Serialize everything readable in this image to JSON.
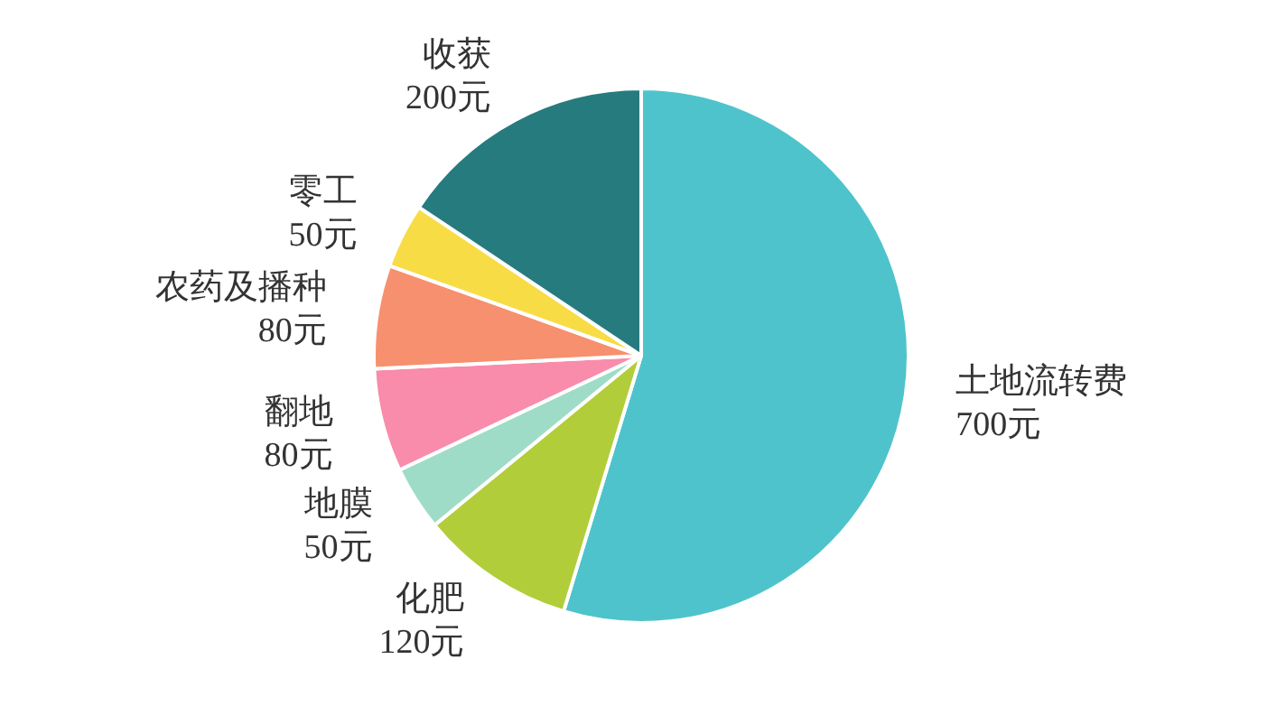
{
  "chart_data": {
    "type": "pie",
    "categories": [
      "土地流转费",
      "化肥",
      "地膜",
      "翻地",
      "农药及播种",
      "零工",
      "收获"
    ],
    "values": [
      700,
      120,
      50,
      80,
      80,
      50,
      200
    ],
    "value_labels": [
      "700元",
      "120元",
      "50元",
      "80元",
      "80元",
      "50元",
      "200元"
    ],
    "colors": [
      "#4fc3cb",
      "#b2cd3a",
      "#9fdcc8",
      "#f98bab",
      "#f7906f",
      "#f7dc45",
      "#267b7e"
    ]
  }
}
